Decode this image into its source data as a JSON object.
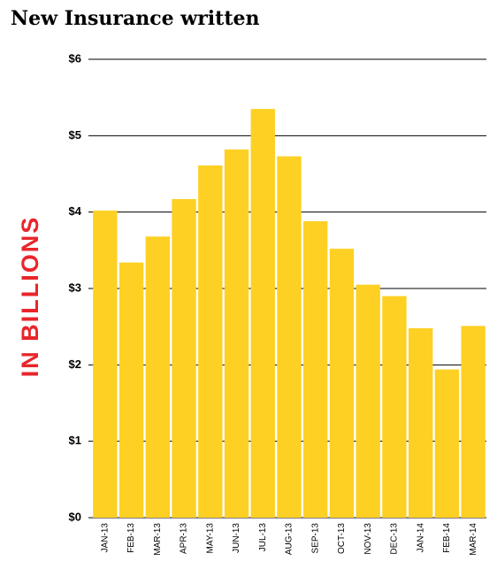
{
  "chart_data": {
    "type": "bar",
    "title": "New Insurance written",
    "y_label": "IN BILLIONS",
    "categories": [
      "JAN-13",
      "FEB-13",
      "MAR-13",
      "APR-13",
      "MAY-13",
      "JUN-13",
      "JUL-13",
      "AUG-13",
      "SEP-13",
      "OCT-13",
      "NOV-13",
      "DEC-13",
      "JAN-14",
      "FEB-14",
      "MAR-14"
    ],
    "values": [
      4.02,
      3.34,
      3.68,
      4.17,
      4.61,
      4.82,
      5.35,
      4.73,
      3.88,
      3.52,
      3.05,
      2.9,
      2.48,
      1.94,
      2.51
    ],
    "color": "#fdd023",
    "ylim": [
      0,
      6
    ],
    "yticks": [
      {
        "value": 0,
        "label": "$0"
      },
      {
        "value": 1,
        "label": "$1"
      },
      {
        "value": 2,
        "label": "$2"
      },
      {
        "value": 3,
        "label": "$3"
      },
      {
        "value": 4,
        "label": "$4"
      },
      {
        "value": 5,
        "label": "$5"
      },
      {
        "value": 6,
        "label": "$6"
      }
    ],
    "grid": true
  }
}
